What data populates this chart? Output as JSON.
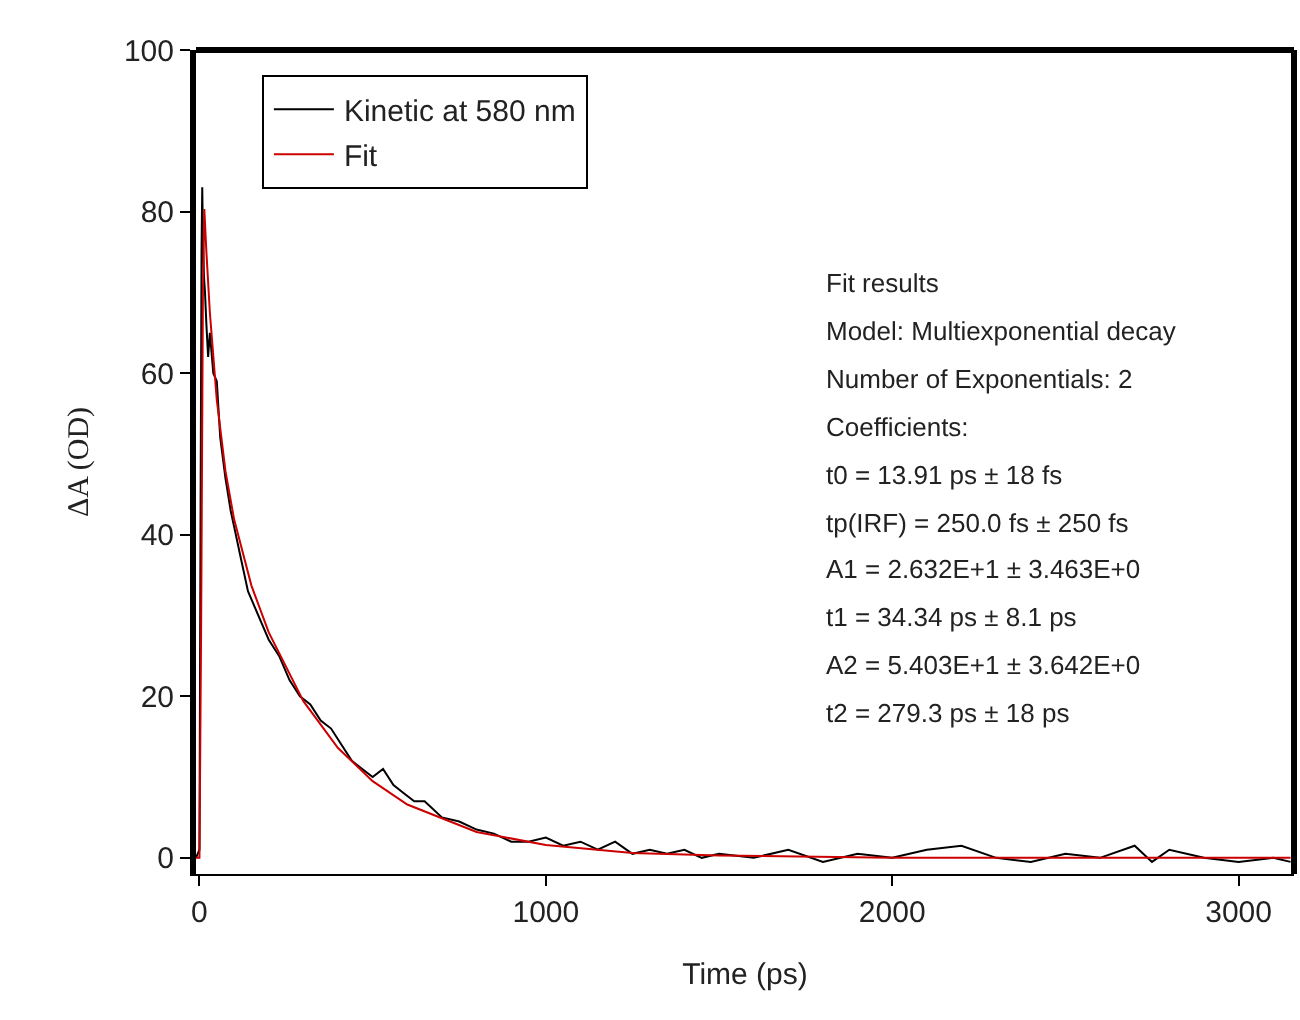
{
  "chart_data": {
    "type": "line",
    "xlabel": "Time (ps)",
    "ylabel": "ΔA (OD)",
    "xlim": [
      -10,
      3160
    ],
    "ylim": [
      -2,
      100
    ],
    "xticks": [
      0,
      1000,
      2000,
      3000
    ],
    "yticks": [
      0,
      20,
      40,
      60,
      80,
      100
    ],
    "legend": "top left",
    "annotations": [
      "Fit results",
      "Model: Multiexponential decay",
      "Number of Exponentials: 2",
      "Coefficients:",
      "t0 = 13.91 ps ± 18 fs",
      "tp(IRF) = 250.0 fs ± 250 fs",
      "A1 = 2.632E+1 ± 3.463E+0",
      "t1 = 34.34 ps ± 8.1 ps",
      "A2 = 5.403E+1 ± 3.642E+0",
      "t2 = 279.3 ps ± 18 ps"
    ],
    "series": [
      {
        "name": "Kinetic at 580 nm",
        "color": "#000000",
        "x": [
          -10,
          0,
          3,
          6,
          8,
          10,
          13,
          16,
          20,
          25,
          30,
          40,
          50,
          60,
          75,
          90,
          100,
          120,
          140,
          160,
          180,
          200,
          230,
          260,
          290,
          320,
          350,
          380,
          410,
          440,
          470,
          500,
          530,
          560,
          590,
          620,
          650,
          700,
          750,
          800,
          850,
          900,
          950,
          1000,
          1050,
          1100,
          1150,
          1200,
          1250,
          1300,
          1350,
          1400,
          1450,
          1500,
          1600,
          1700,
          1800,
          1900,
          2000,
          2100,
          2200,
          2300,
          2400,
          2500,
          2600,
          2700,
          2750,
          2800,
          2900,
          3000,
          3100,
          3150
        ],
        "values": [
          0,
          1,
          40,
          75,
          83,
          77,
          72,
          70,
          66,
          62,
          65,
          60,
          59,
          52,
          47,
          43,
          41,
          37,
          33,
          31,
          29,
          27,
          25,
          22,
          20,
          19,
          17,
          16,
          14,
          12,
          11,
          10,
          11,
          9,
          8,
          7,
          7,
          5,
          4.5,
          3.5,
          3,
          2,
          2,
          2.5,
          1.5,
          2,
          1,
          2,
          0.5,
          1,
          0.5,
          1,
          0,
          0.5,
          0,
          1,
          -0.5,
          0.5,
          0,
          1,
          1.5,
          0,
          -0.5,
          0.5,
          0,
          1.5,
          -0.5,
          1,
          0,
          -0.5,
          0,
          -0.5
        ]
      },
      {
        "name": "Fit",
        "color": "#cc0000",
        "x": [
          -10,
          0,
          5,
          10,
          14,
          20,
          30,
          50,
          75,
          100,
          150,
          200,
          300,
          400,
          500,
          600,
          800,
          1000,
          1250,
          1500,
          2000,
          3150
        ],
        "values": [
          0,
          0,
          30,
          70,
          80.3,
          75,
          67.5,
          56.7,
          47.9,
          41.9,
          33.7,
          27.9,
          19.4,
          13.6,
          9.5,
          6.6,
          3.2,
          1.6,
          0.6,
          0.3,
          0,
          0
        ]
      }
    ]
  }
}
